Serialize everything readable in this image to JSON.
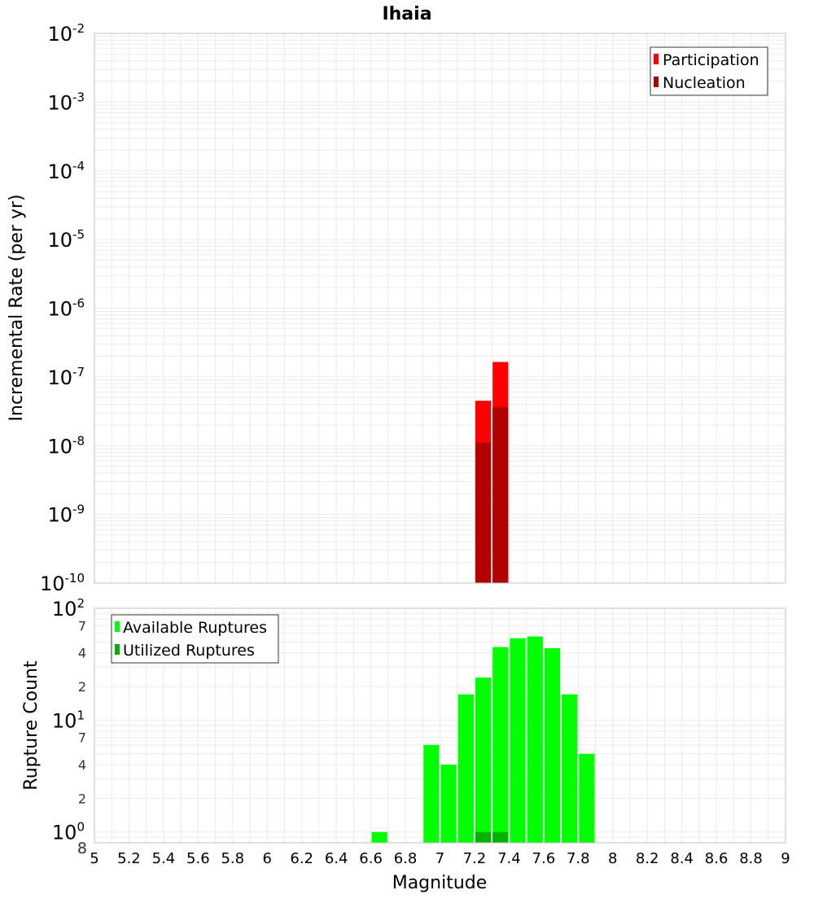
{
  "colors": {
    "participation": "#ff0000",
    "nucleation": "#b30000",
    "available": "#00ff00",
    "utilized": "#00b300",
    "grid": "#ebebeb",
    "plot_border": "#c0c0c0"
  },
  "chart_data": [
    {
      "type": "bar",
      "title": "Ihaia",
      "ylabel": "Incremental Rate (per yr)",
      "yscale": "log",
      "ylim": [
        1e-10,
        0.01
      ],
      "xlim": [
        5,
        9
      ],
      "grid": true,
      "legend_position": "top-right",
      "y_ticks": [
        {
          "base": "10",
          "exp": "-2"
        },
        {
          "base": "10",
          "exp": "-3"
        },
        {
          "base": "10",
          "exp": "-4"
        },
        {
          "base": "10",
          "exp": "-5"
        },
        {
          "base": "10",
          "exp": "-6"
        },
        {
          "base": "10",
          "exp": "-7"
        },
        {
          "base": "10",
          "exp": "-8"
        },
        {
          "base": "10",
          "exp": "-9"
        },
        {
          "base": "10",
          "exp": "-10"
        }
      ],
      "bin_width": 0.1,
      "series": [
        {
          "name": "Participation",
          "x": [
            7.25,
            7.35
          ],
          "values": [
            4.5e-08,
            1.65e-07
          ]
        },
        {
          "name": "Nucleation",
          "x": [
            7.25,
            7.35
          ],
          "values": [
            1.1e-08,
            3.6e-08
          ]
        }
      ]
    },
    {
      "type": "bar",
      "ylabel": "Rupture Count",
      "xlabel": "Magnitude",
      "yscale": "log",
      "ylim": [
        0.8,
        100
      ],
      "xlim": [
        5,
        9
      ],
      "grid": true,
      "legend_position": "top-left",
      "y_ticks": [
        {
          "label": "10",
          "exp": "2",
          "major": true
        },
        {
          "label": "7",
          "major": false
        },
        {
          "label": "4",
          "major": false
        },
        {
          "label": "2",
          "major": false
        },
        {
          "label": "10",
          "exp": "1",
          "major": true
        },
        {
          "label": "7",
          "major": false
        },
        {
          "label": "4",
          "major": false
        },
        {
          "label": "2",
          "major": false
        },
        {
          "label": "10",
          "exp": "0",
          "major": true
        },
        {
          "label": "8",
          "major": false
        }
      ],
      "x_ticks": [
        "5",
        "5.2",
        "5.4",
        "5.6",
        "5.8",
        "6",
        "6.2",
        "6.4",
        "6.6",
        "6.8",
        "7",
        "7.2",
        "7.4",
        "7.6",
        "7.8",
        "8",
        "8.2",
        "8.4",
        "8.6",
        "8.8",
        "9"
      ],
      "bin_width": 0.1,
      "series": [
        {
          "name": "Available Ruptures",
          "x": [
            6.65,
            6.95,
            7.05,
            7.15,
            7.25,
            7.35,
            7.45,
            7.55,
            7.65,
            7.75,
            7.85
          ],
          "values": [
            1,
            6,
            4,
            17,
            24,
            45,
            54,
            56,
            44,
            17,
            5
          ]
        },
        {
          "name": "Utilized Ruptures",
          "x": [
            7.25,
            7.35
          ],
          "values": [
            1,
            1
          ]
        }
      ]
    }
  ]
}
